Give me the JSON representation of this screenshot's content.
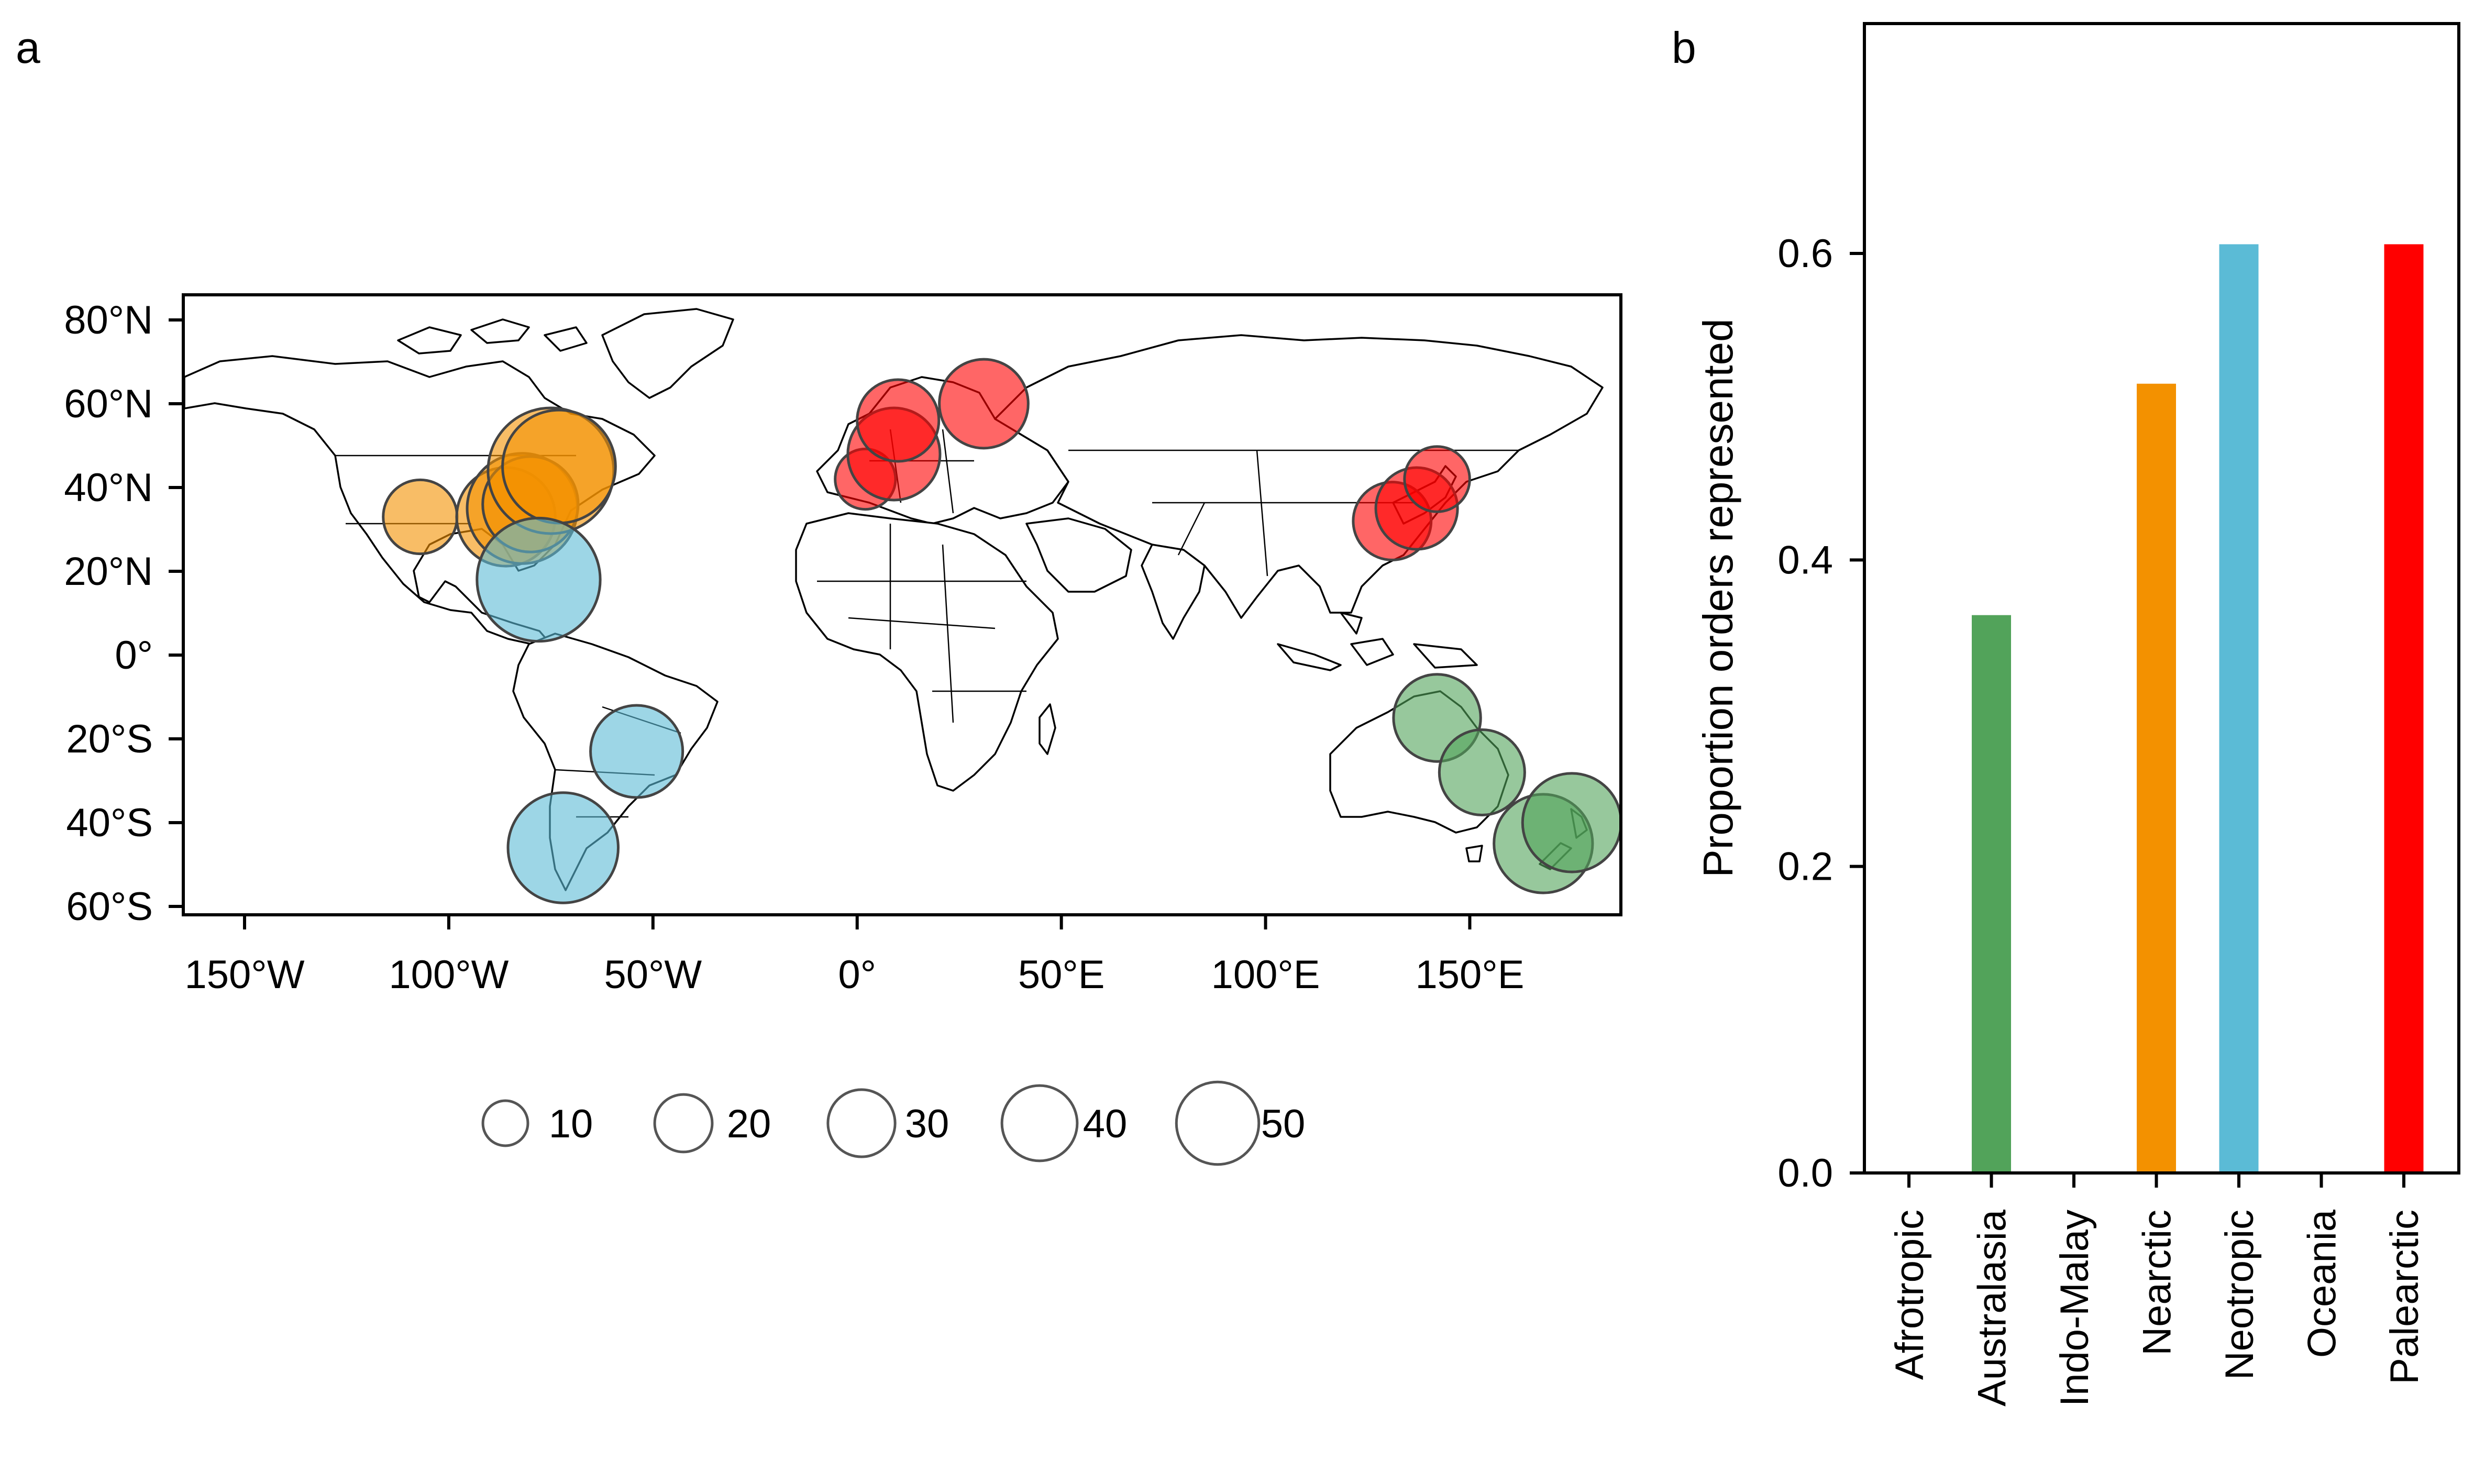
{
  "panels": {
    "a": {
      "letter": "a"
    },
    "b": {
      "letter": "b"
    }
  },
  "chart_data": [
    {
      "type": "scatter",
      "panel": "a",
      "title": "",
      "xlabel": "",
      "ylabel": "",
      "xlim": [
        -165,
        187
      ],
      "ylim": [
        -62,
        86
      ],
      "x_ticks": [
        {
          "value": -150,
          "label": "150°W"
        },
        {
          "value": -100,
          "label": "100°W"
        },
        {
          "value": -50,
          "label": "50°W"
        },
        {
          "value": 0,
          "label": "0°"
        },
        {
          "value": 50,
          "label": "50°E"
        },
        {
          "value": 100,
          "label": "100°E"
        },
        {
          "value": 150,
          "label": "150°E"
        }
      ],
      "y_ticks": [
        {
          "value": 80,
          "label": "80°N"
        },
        {
          "value": 60,
          "label": "60°N"
        },
        {
          "value": 40,
          "label": "40°N"
        },
        {
          "value": 20,
          "label": "20°N"
        },
        {
          "value": 0,
          "label": "0°"
        },
        {
          "value": -20,
          "label": "20°S"
        },
        {
          "value": -40,
          "label": "40°S"
        },
        {
          "value": -60,
          "label": "60°S"
        }
      ],
      "grid": false,
      "basemap": "world country outlines",
      "size_legend": {
        "placement": "bottom",
        "values": [
          10,
          20,
          30,
          40,
          50
        ],
        "labels": [
          "10",
          "20",
          "30",
          "40",
          "50"
        ]
      },
      "points": [
        {
          "lon": -107,
          "lat": 33,
          "size": 18,
          "realm": "Nearctic"
        },
        {
          "lon": -86,
          "lat": 33,
          "size": 32,
          "realm": "Nearctic"
        },
        {
          "lon": -82,
          "lat": 35,
          "size": 40,
          "realm": "Nearctic"
        },
        {
          "lon": -80,
          "lat": 36,
          "size": 30,
          "realm": "Nearctic"
        },
        {
          "lon": -75,
          "lat": 44,
          "size": 52,
          "realm": "Nearctic"
        },
        {
          "lon": -73,
          "lat": 45,
          "size": 42,
          "realm": "Nearctic"
        },
        {
          "lon": -78,
          "lat": 18,
          "size": 50,
          "realm": "Neotropic"
        },
        {
          "lon": -54,
          "lat": -23,
          "size": 28,
          "realm": "Neotropic"
        },
        {
          "lon": -72,
          "lat": -46,
          "size": 40,
          "realm": "Neotropic"
        },
        {
          "lon": 2,
          "lat": 42,
          "size": 12,
          "realm": "Palearctic"
        },
        {
          "lon": 9,
          "lat": 48,
          "size": 28,
          "realm": "Palearctic"
        },
        {
          "lon": 10,
          "lat": 56,
          "size": 22,
          "realm": "Palearctic"
        },
        {
          "lon": 31,
          "lat": 60,
          "size": 26,
          "realm": "Palearctic"
        },
        {
          "lon": 131,
          "lat": 32,
          "size": 20,
          "realm": "Palearctic"
        },
        {
          "lon": 137,
          "lat": 35,
          "size": 22,
          "realm": "Palearctic"
        },
        {
          "lon": 142,
          "lat": 42,
          "size": 14,
          "realm": "Palearctic"
        },
        {
          "lon": 142,
          "lat": -15,
          "size": 25,
          "realm": "Australasia"
        },
        {
          "lon": 153,
          "lat": -28,
          "size": 24,
          "realm": "Australasia"
        },
        {
          "lon": 168,
          "lat": -45,
          "size": 32,
          "realm": "Australasia"
        },
        {
          "lon": 175,
          "lat": -40,
          "size": 32,
          "realm": "Australasia"
        }
      ]
    },
    {
      "type": "bar",
      "panel": "b",
      "title": "",
      "xlabel": "",
      "ylabel": "Proportion orders represented",
      "ylim": [
        0,
        0.75
      ],
      "y_ticks": [
        0.0,
        0.2,
        0.4,
        0.6
      ],
      "y_tick_labels": [
        "0.0",
        "0.2",
        "0.4",
        "0.6"
      ],
      "grid": false,
      "categories": [
        "Afrotropic",
        "Australasia",
        "Indo-Malay",
        "Nearctic",
        "Neotropic",
        "Oceania",
        "Palearctic"
      ],
      "values": [
        0,
        0.364,
        0,
        0.515,
        0.606,
        0,
        0.606
      ]
    }
  ],
  "colors": {
    "Afrotropic": "#888888",
    "Australasia": "#52a35a",
    "Indo-Malay": "#888888",
    "Nearctic": "#f39100",
    "Neotropic": "#5bbbd6",
    "Oceania": "#888888",
    "Palearctic": "#ff0000"
  }
}
